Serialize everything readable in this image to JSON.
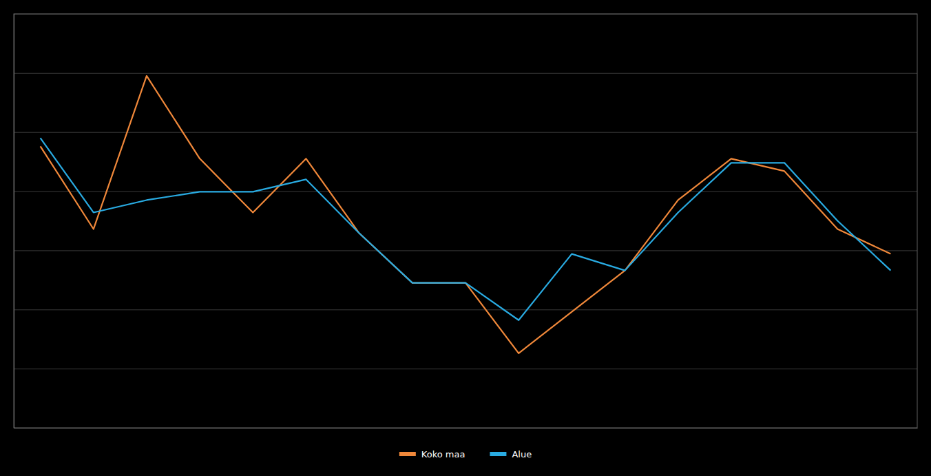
{
  "chart_data": {
    "type": "line",
    "categories": [
      null,
      null,
      null,
      null,
      null,
      null,
      null,
      null,
      null,
      null,
      null,
      null,
      null,
      null,
      null,
      null,
      null
    ],
    "series": [
      {
        "name": "Koko maa",
        "color": "#F0883A",
        "values": [
          68,
          48,
          85,
          65,
          52,
          65,
          47,
          35,
          35,
          18,
          28,
          38,
          55,
          65,
          62,
          48,
          42
        ]
      },
      {
        "name": "Alue",
        "color": "#29ABE2",
        "values": [
          70,
          52,
          55,
          57,
          57,
          60,
          47,
          35,
          35,
          26,
          42,
          38,
          52,
          64,
          64,
          50,
          38
        ]
      }
    ],
    "ylim": [
      0,
      100
    ],
    "yticks": [
      0,
      14.285714285714286,
      28.571428571428573,
      42.857142857142854,
      57.142857142857146,
      71.42857142857143,
      85.71428571428571,
      100
    ],
    "grid": true,
    "tick_labels": false,
    "legend": "bottom"
  }
}
